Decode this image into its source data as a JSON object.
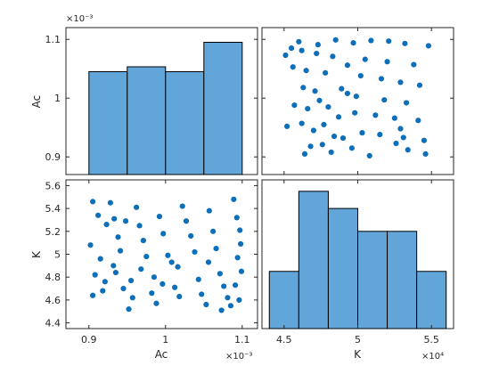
{
  "chart_data": {
    "type": "scatter-matrix",
    "variables": [
      "Ac",
      "K"
    ],
    "grid": false,
    "axes": {
      "Ac": {
        "label": "Ac",
        "exponent_label": "×10⁻³",
        "range": [
          0.00087,
          0.00112
        ],
        "ticks": [
          0.0009,
          0.001,
          0.0011
        ],
        "tick_labels": [
          "0.9",
          "1",
          "1.1"
        ]
      },
      "K": {
        "label": "K",
        "exponent_label": "×10⁴",
        "range": [
          43500,
          56500
        ],
        "ticks": [
          44000,
          46000,
          48000,
          50000,
          52000,
          54000,
          56000
        ],
        "tick_labels": [
          "4.4",
          "4.6",
          "4.8",
          "5",
          "5.2",
          "5.4",
          "5.6"
        ],
        "hist_ticks": [
          45000,
          50000,
          55000
        ],
        "hist_tick_labels": [
          "4.5",
          "5",
          "5.5"
        ]
      }
    },
    "histograms": {
      "Ac": {
        "bin_edges": [
          0.0009,
          0.00095,
          0.001,
          0.00105,
          0.0011
        ],
        "heights": [
          21,
          22,
          21,
          27
        ]
      },
      "K": {
        "bin_edges": [
          44000,
          46000,
          48000,
          50000,
          52000,
          54000,
          56000
        ],
        "heights": [
          10,
          24,
          21,
          17,
          17,
          10
        ]
      }
    },
    "points": [
      [
        0.000905,
        54600
      ],
      [
        0.000912,
        53400
      ],
      [
        0.000923,
        52600
      ],
      [
        0.000902,
        50800
      ],
      [
        0.000915,
        49600
      ],
      [
        0.000908,
        48200
      ],
      [
        0.000921,
        47600
      ],
      [
        0.000905,
        46400
      ],
      [
        0.000918,
        46800
      ],
      [
        0.000928,
        54500
      ],
      [
        0.000933,
        53100
      ],
      [
        0.000938,
        51500
      ],
      [
        0.000941,
        50300
      ],
      [
        0.000932,
        49000
      ],
      [
        0.000945,
        47000
      ],
      [
        0.000957,
        46200
      ],
      [
        0.000952,
        45200
      ],
      [
        0.000962,
        54100
      ],
      [
        0.000966,
        52500
      ],
      [
        0.000971,
        51200
      ],
      [
        0.000975,
        49800
      ],
      [
        0.000968,
        48700
      ],
      [
        0.000955,
        47700
      ],
      [
        0.000982,
        46600
      ],
      [
        0.000988,
        45700
      ],
      [
        0.000992,
        53300
      ],
      [
        0.000997,
        51800
      ],
      [
        0.001003,
        49900
      ],
      [
        0.000985,
        48000
      ],
      [
        0.001012,
        47100
      ],
      [
        0.001018,
        46300
      ],
      [
        0.001022,
        54200
      ],
      [
        0.001027,
        52900
      ],
      [
        0.001033,
        51600
      ],
      [
        0.001038,
        50200
      ],
      [
        0.001016,
        48900
      ],
      [
        0.001043,
        47800
      ],
      [
        0.001047,
        46500
      ],
      [
        0.001053,
        45600
      ],
      [
        0.001057,
        53800
      ],
      [
        0.001062,
        52000
      ],
      [
        0.001066,
        50500
      ],
      [
        0.001071,
        48300
      ],
      [
        0.001076,
        47200
      ],
      [
        0.001081,
        46200
      ],
      [
        0.001085,
        45500
      ],
      [
        0.001089,
        54800
      ],
      [
        0.001093,
        53200
      ],
      [
        0.001097,
        52100
      ],
      [
        0.001098,
        50900
      ],
      [
        0.001094,
        49700
      ],
      [
        0.001099,
        48500
      ],
      [
        0.001091,
        47300
      ],
      [
        0.001096,
        46000
      ],
      [
        0.001073,
        45100
      ],
      [
        0.000935,
        48400
      ],
      [
        0.000996,
        47400
      ],
      [
        0.001056,
        49300
      ],
      [
        0.000948,
        52900
      ],
      [
        0.001008,
        49300
      ]
    ]
  }
}
